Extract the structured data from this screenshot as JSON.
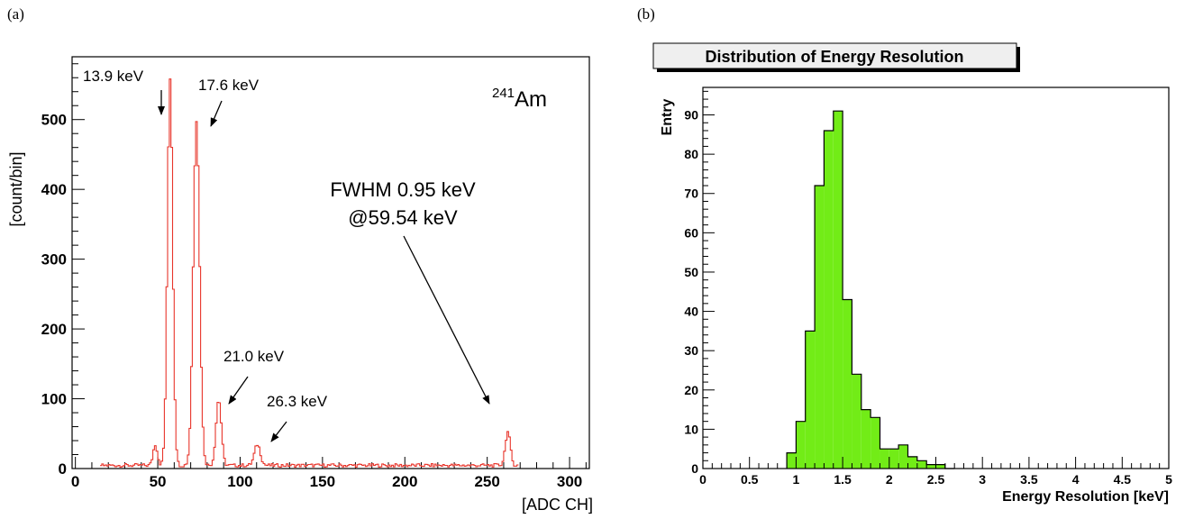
{
  "panels": {
    "a": "(a)",
    "b": "(b)"
  },
  "chart_data": [
    {
      "type": "line",
      "xlabel": "[ADC CH]",
      "ylabel": "[count/bin]",
      "xlim": [
        -2,
        312
      ],
      "ylim": [
        0,
        590
      ],
      "xticks": [
        0,
        50,
        100,
        150,
        200,
        250,
        300
      ],
      "yticks": [
        0,
        100,
        200,
        300,
        400,
        500
      ],
      "isotope": {
        "mass": "241",
        "symbol": "Am"
      },
      "color": "#e8352b",
      "annotations": [
        {
          "text": "13.9 keV",
          "x": 51,
          "y": 565
        },
        {
          "text": "17.6 keV",
          "x": 82,
          "y": 550
        },
        {
          "text": "21.0 keV",
          "x": 99,
          "y": 235
        },
        {
          "text": "26.3 keV",
          "x": 113,
          "y": 150
        },
        {
          "text": "FWHM 0.95 keV",
          "x": 233,
          "y": 635
        },
        {
          "text": "@59.54 keV",
          "x": 233,
          "y": 595
        }
      ],
      "peaks": [
        {
          "center": 48,
          "sigma": 1.3,
          "height": 30
        },
        {
          "center": 57,
          "sigma": 1.6,
          "height": 555
        },
        {
          "center": 73,
          "sigma": 1.9,
          "height": 495
        },
        {
          "center": 86.5,
          "sigma": 1.6,
          "height": 95
        },
        {
          "center": 110,
          "sigma": 1.8,
          "height": 30
        },
        {
          "center": 262,
          "sigma": 1.5,
          "height": 48
        }
      ],
      "spectrum_range": [
        15,
        268
      ]
    },
    {
      "type": "bar",
      "title": "Distribution of Energy Resolution",
      "xlabel": "Energy Resolution [keV]",
      "ylabel": "Entry",
      "xlim": [
        0,
        5
      ],
      "ylim": [
        0,
        97
      ],
      "xticks": [
        "0",
        "0.5",
        "1",
        "1.5",
        "2",
        "2.5",
        "3",
        "3.5",
        "4",
        "4.5",
        "5"
      ],
      "yticks": [
        0,
        10,
        20,
        30,
        40,
        50,
        60,
        70,
        80,
        90
      ],
      "bin_width": 0.1,
      "bin_start": 0.9,
      "values": [
        4,
        12,
        35,
        72,
        86,
        91,
        43,
        24,
        15,
        13,
        5,
        5,
        6,
        3,
        2,
        1,
        1,
        0
      ],
      "fill": "#72ec17"
    }
  ]
}
